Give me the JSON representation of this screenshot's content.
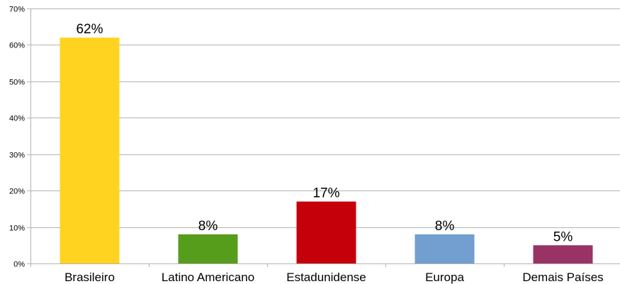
{
  "chart_data": {
    "type": "bar",
    "categories": [
      "Brasileiro",
      "Latino Americano",
      "Estadunidense",
      "Europa",
      "Demais Países"
    ],
    "values": [
      62,
      8,
      17,
      8,
      5
    ],
    "data_labels": [
      "62%",
      "8%",
      "17%",
      "8%",
      "5%"
    ],
    "colors": [
      "#ffd320",
      "#579d1c",
      "#c5000b",
      "#729fcf",
      "#993366"
    ],
    "yticks": [
      0,
      10,
      20,
      30,
      40,
      50,
      60,
      70
    ],
    "ytick_labels": [
      "0%",
      "10%",
      "20%",
      "30%",
      "40%",
      "50%",
      "60%",
      "70%"
    ],
    "ylim": [
      0,
      70
    ],
    "grid": true,
    "legend": "none"
  }
}
